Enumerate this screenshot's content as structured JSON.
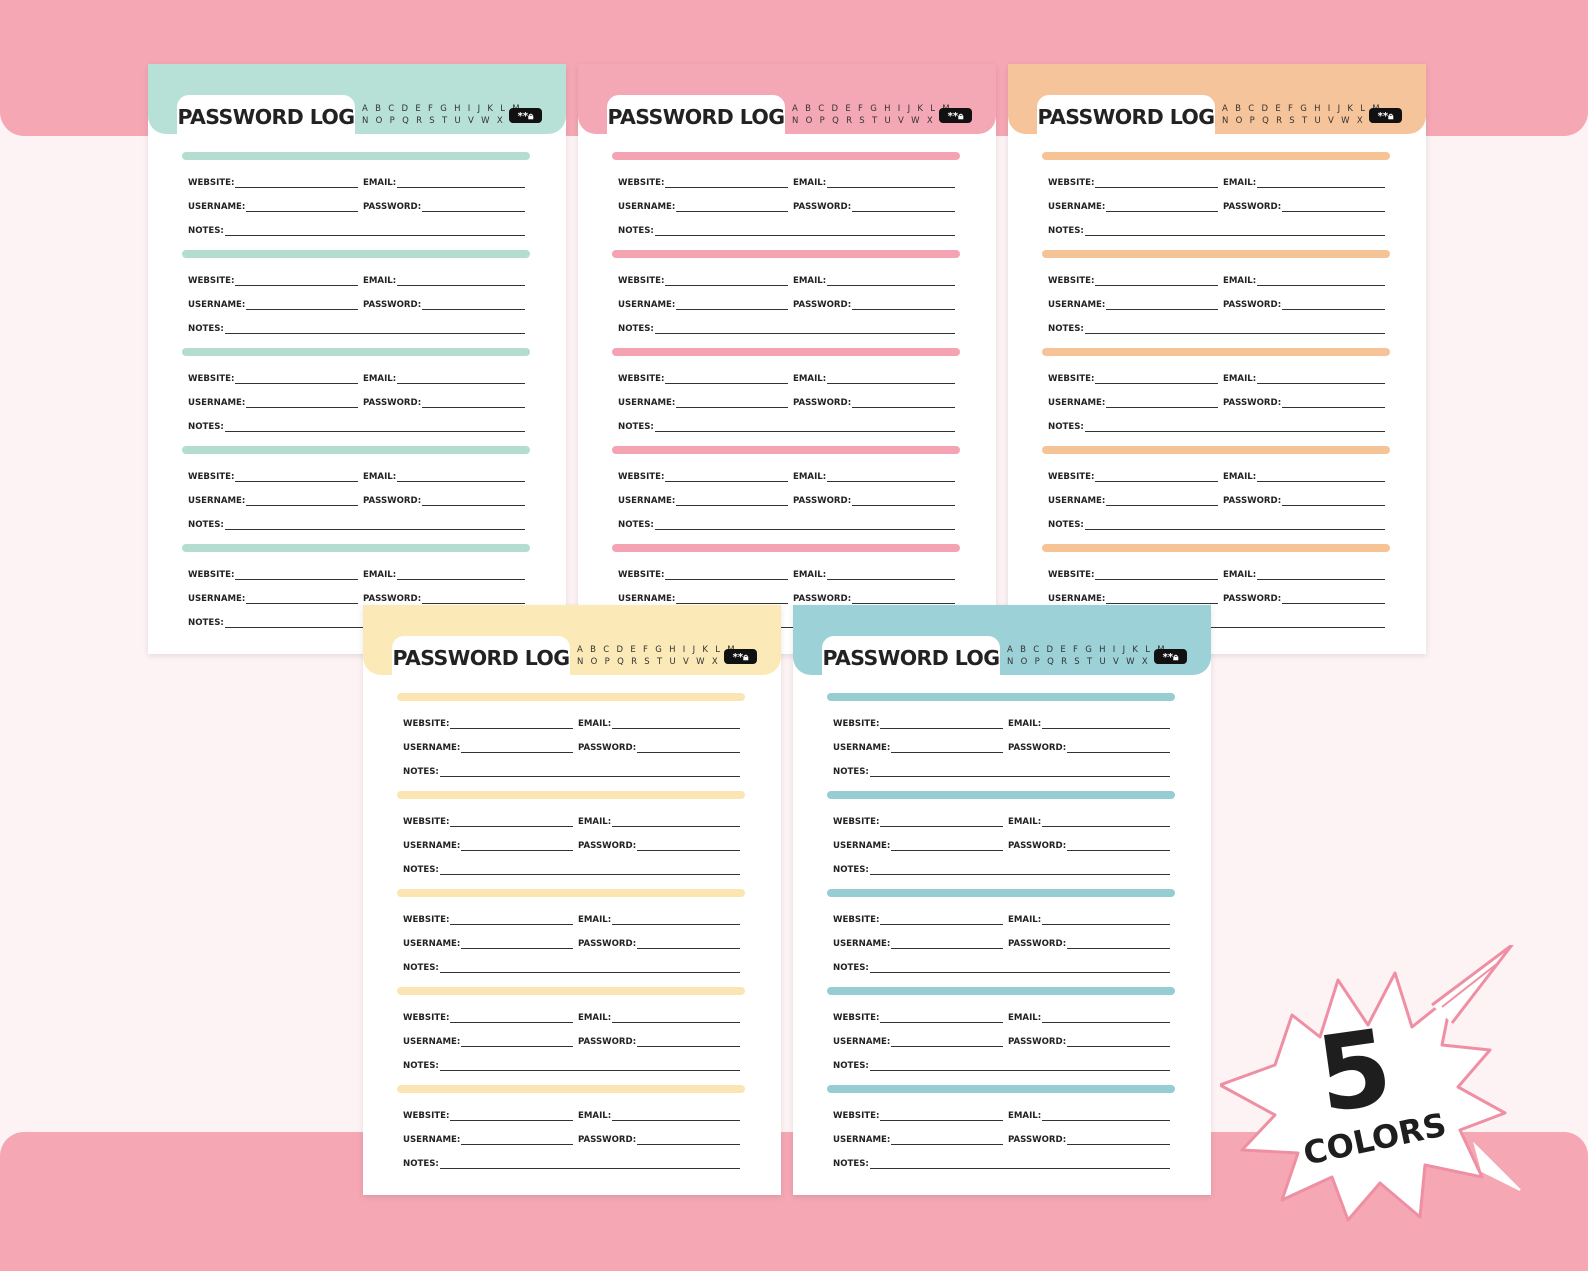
{
  "title": "PASSWORD LOG",
  "alphabet_row1": "A B C D E F G H I J K L M",
  "alphabet_row2": "N O P Q R S T U V W X Y Z",
  "lock_badge": "**🔒",
  "labels": {
    "website": "WEBSITE:",
    "email": "EMAIL:",
    "username": "USERNAME:",
    "password": "PASSWORD:",
    "notes": "NOTES:"
  },
  "badge": {
    "number": "5",
    "text": "COLORS"
  },
  "colors": {
    "background": "#fdf3f5",
    "band": "#f5a7b4",
    "burst_outline": "#ef8fa3"
  },
  "pages": [
    {
      "name": "mint",
      "header_color": "#b7e0d6",
      "bar_color": "#b4ddd2"
    },
    {
      "name": "pink",
      "header_color": "#f4a8b6",
      "bar_color": "#f4a3b2"
    },
    {
      "name": "peach",
      "header_color": "#f6c49a",
      "bar_color": "#f6c397"
    },
    {
      "name": "yellow",
      "header_color": "#fbe9b8",
      "bar_color": "#fbe6b3"
    },
    {
      "name": "teal",
      "header_color": "#9bd1d7",
      "bar_color": "#96cdd3"
    }
  ]
}
